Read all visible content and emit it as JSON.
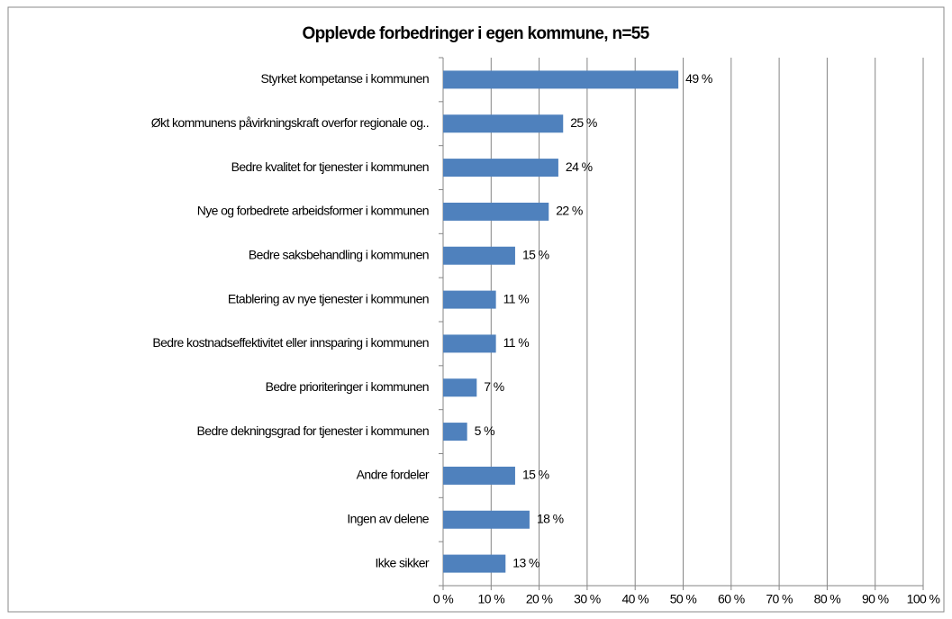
{
  "chart_data": {
    "type": "bar",
    "orientation": "horizontal",
    "title": "Opplevde forbedringer i egen kommune, n=55",
    "categories": [
      "Styrket kompetanse i kommunen",
      "Økt kommunens påvirkningskraft overfor regionale og..",
      "Bedre kvalitet for tjenester i kommunen",
      "Nye og forbedrete arbeidsformer i kommunen",
      "Bedre saksbehandling i kommunen",
      "Etablering av nye tjenester i kommunen",
      "Bedre kostnadseffektivitet eller innsparing i kommunen",
      "Bedre prioriteringer i kommunen",
      "Bedre dekningsgrad for tjenester i kommunen",
      "Andre fordeler",
      "Ingen av delene",
      "Ikke sikker"
    ],
    "values": [
      49,
      25,
      24,
      22,
      15,
      11,
      11,
      7,
      5,
      15,
      18,
      13
    ],
    "value_labels": [
      "49 %",
      "25 %",
      "24 %",
      "22 %",
      "15 %",
      "11 %",
      "11 %",
      "7 %",
      "5 %",
      "15 %",
      "18 %",
      "13 %"
    ],
    "color": "#4f81bd",
    "xlim": [
      0,
      100
    ],
    "xticks": [
      {
        "value": 0,
        "label": "0 %"
      },
      {
        "value": 10,
        "label": "10 %"
      },
      {
        "value": 20,
        "label": "20 %"
      },
      {
        "value": 30,
        "label": "30 %"
      },
      {
        "value": 40,
        "label": "40 %"
      },
      {
        "value": 50,
        "label": "50 %"
      },
      {
        "value": 60,
        "label": "60 %"
      },
      {
        "value": 70,
        "label": "70 %"
      },
      {
        "value": 80,
        "label": "80 %"
      },
      {
        "value": 90,
        "label": "90 %"
      },
      {
        "value": 100,
        "label": "100 %"
      }
    ],
    "grid": true
  }
}
